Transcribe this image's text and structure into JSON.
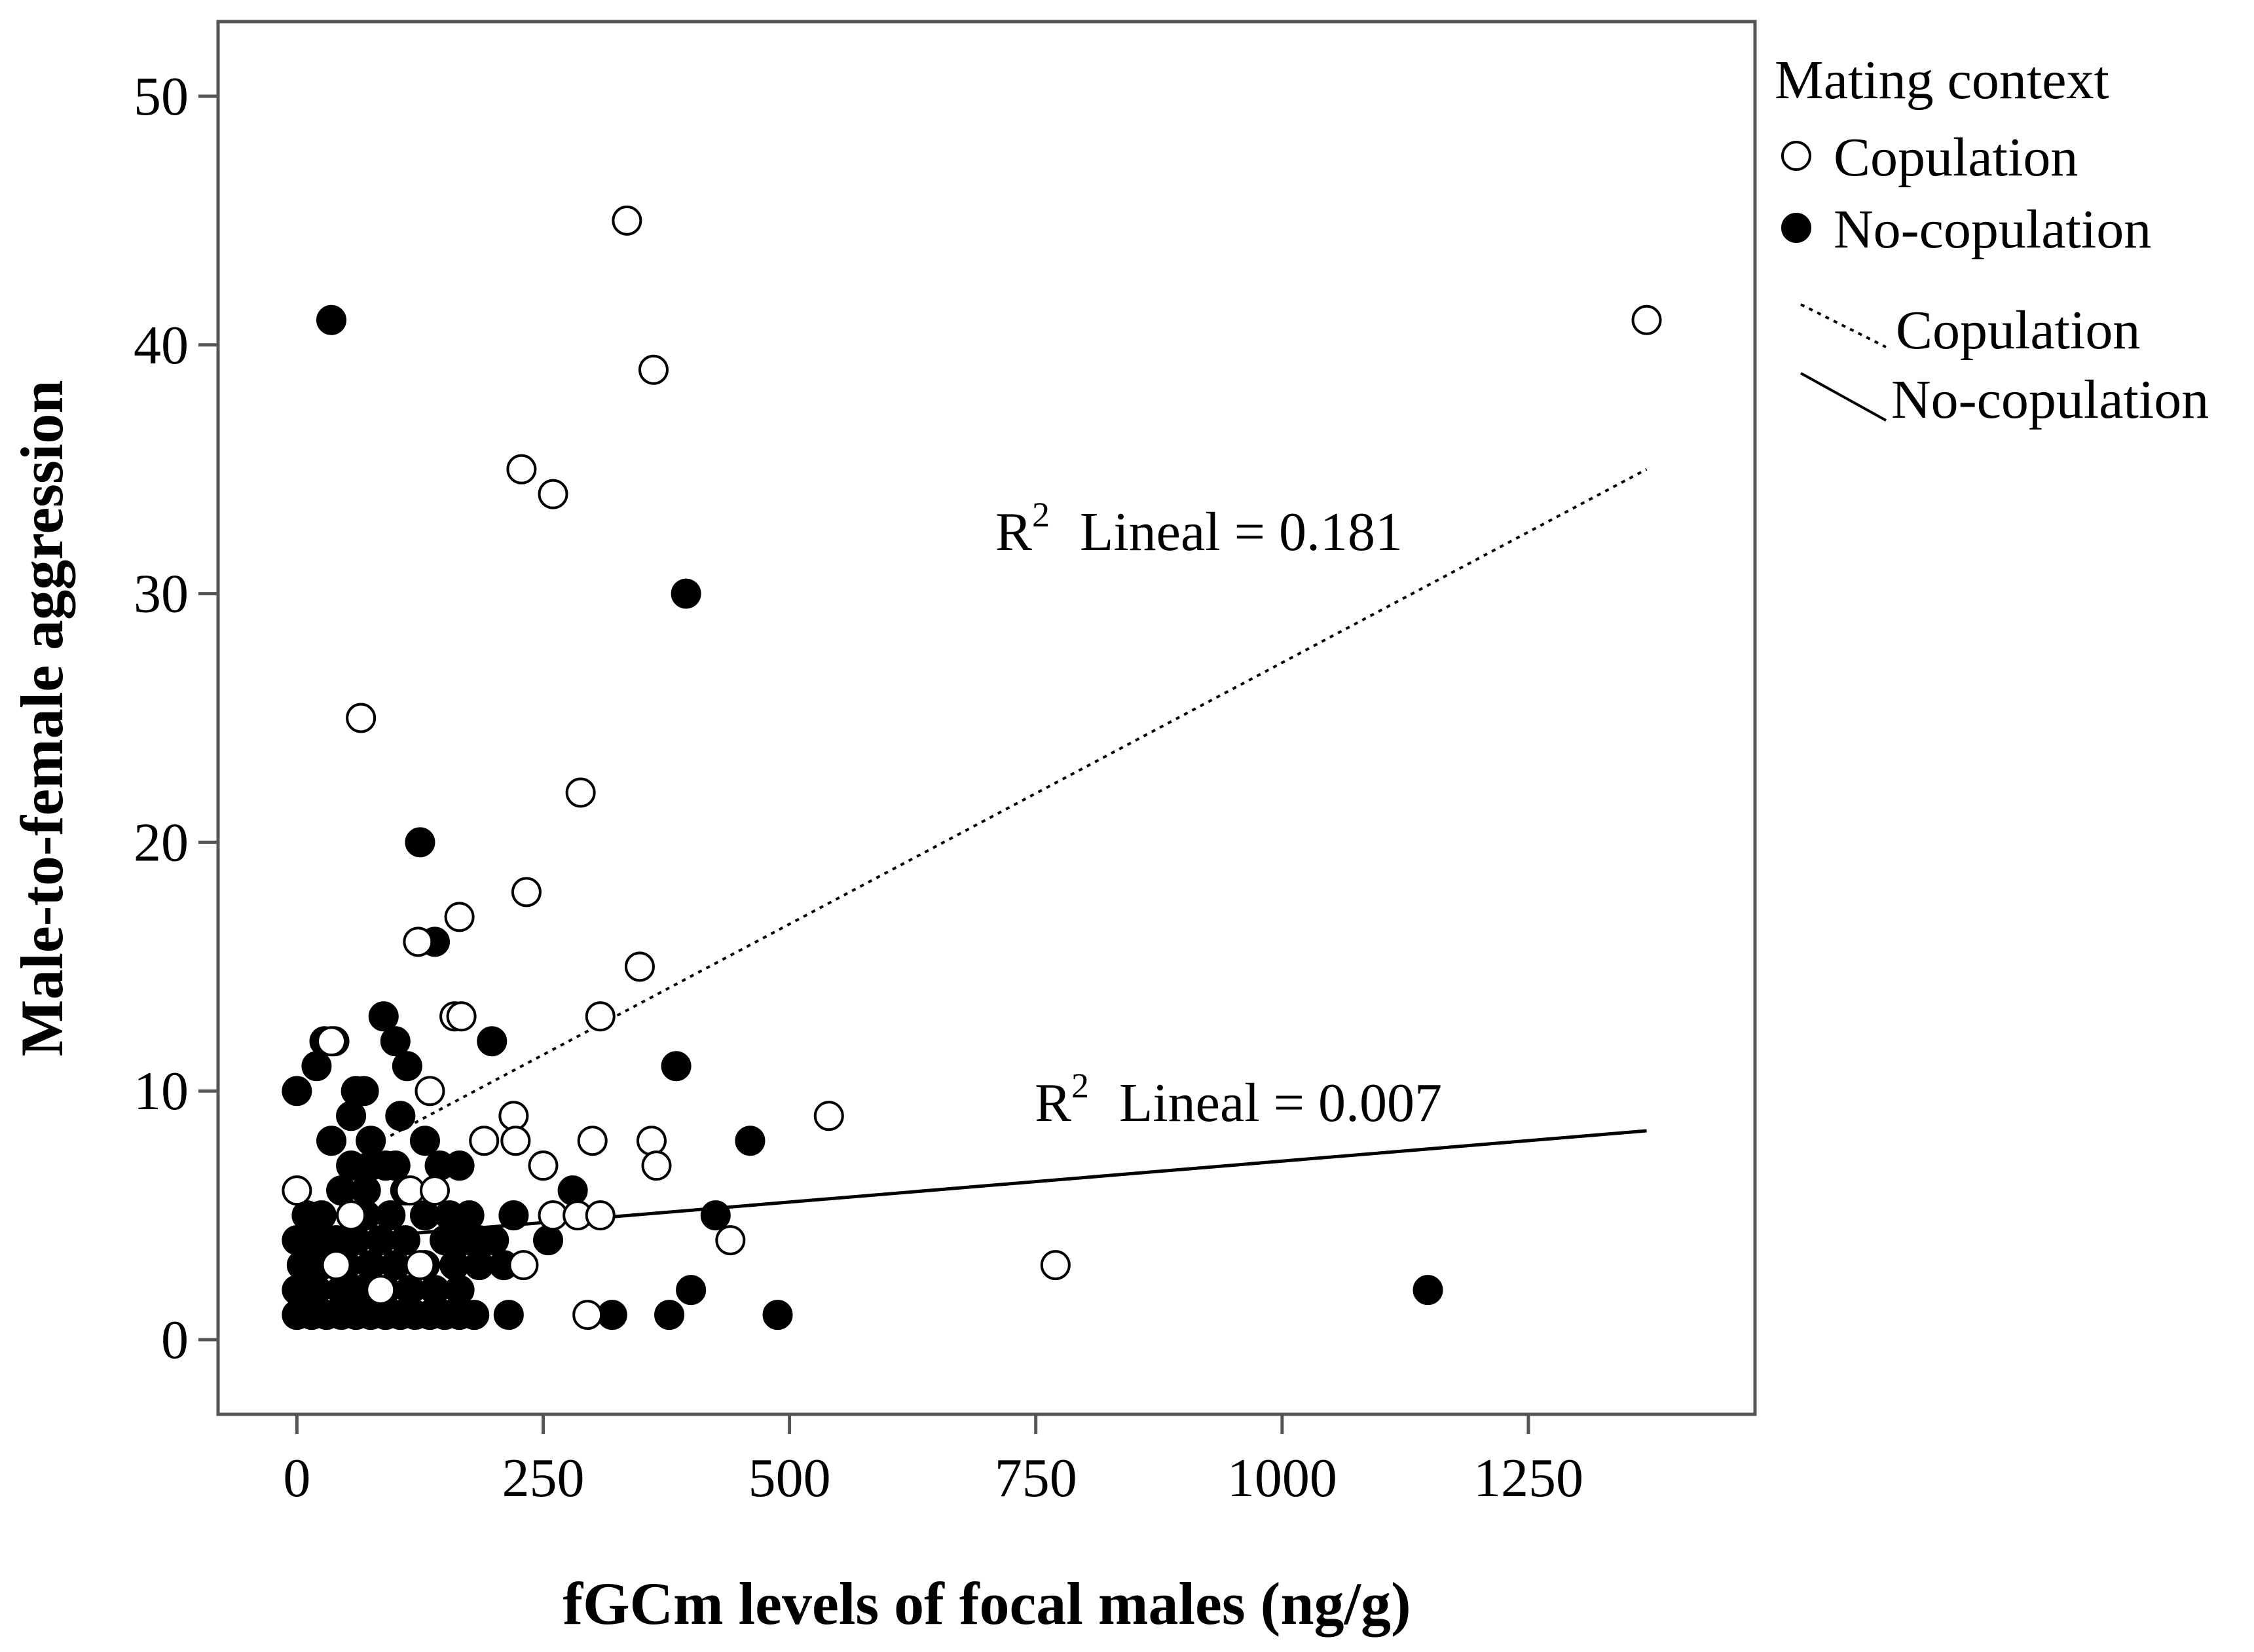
{
  "chart_data": {
    "type": "scatter",
    "title": "",
    "xlabel": "fGCm levels of focal males (ng/g)",
    "ylabel": "Male-to-female aggression",
    "xlim": [
      -80,
      1480
    ],
    "ylim": [
      -3,
      53
    ],
    "xticks": [
      0,
      250,
      500,
      750,
      1000,
      1250
    ],
    "yticks": [
      0,
      10,
      20,
      30,
      40,
      50
    ],
    "xtick_labels": [
      "0",
      "250",
      "500",
      "750",
      "1000",
      "1250"
    ],
    "ytick_labels": [
      "0",
      "10",
      "20",
      "30",
      "40",
      "50"
    ],
    "grid": false,
    "legend": {
      "title": "Mating context",
      "position": "top-right outside",
      "marker_entries": [
        {
          "label": "Copulation",
          "marker": "open-circle"
        },
        {
          "label": "No-copulation",
          "marker": "filled-circle"
        }
      ],
      "line_entries": [
        {
          "label": "Copulation",
          "style": "dotted"
        },
        {
          "label": "No-copulation",
          "style": "solid"
        }
      ]
    },
    "annotations": [
      {
        "r2": "R",
        "sup": "2",
        "text": "Lineal = 0.181",
        "series": "Copulation",
        "x": 710,
        "y": 31.2
      },
      {
        "r2": "R",
        "sup": "2",
        "text": "Lineal = 0.007",
        "series": "No-copulation",
        "x": 750,
        "y": 9.3
      }
    ],
    "fit_lines": [
      {
        "name": "Copulation",
        "style": "dotted",
        "x": [
          95,
          1370
        ],
        "y": [
          8.2,
          35
        ]
      },
      {
        "name": "No-copulation",
        "style": "solid",
        "x": [
          95,
          1370
        ],
        "y": [
          4.2,
          8.4
        ]
      }
    ],
    "series": [
      {
        "name": "Copulation",
        "marker": "open-circle",
        "points": [
          [
            335,
            45
          ],
          [
            362,
            39
          ],
          [
            1370,
            41
          ],
          [
            228,
            35
          ],
          [
            260,
            34
          ],
          [
            65,
            25
          ],
          [
            288,
            22
          ],
          [
            233,
            18
          ],
          [
            165,
            17
          ],
          [
            123,
            16
          ],
          [
            348,
            15
          ],
          [
            160,
            13
          ],
          [
            167,
            13
          ],
          [
            308,
            13
          ],
          [
            35,
            12
          ],
          [
            135,
            10
          ],
          [
            220,
            9
          ],
          [
            540,
            9
          ],
          [
            190,
            8
          ],
          [
            222,
            8
          ],
          [
            300,
            8
          ],
          [
            360,
            8
          ],
          [
            250,
            7
          ],
          [
            365,
            7
          ],
          [
            0,
            6
          ],
          [
            115,
            6
          ],
          [
            140,
            6
          ],
          [
            55,
            5
          ],
          [
            260,
            5
          ],
          [
            285,
            5
          ],
          [
            308,
            5
          ],
          [
            440,
            4
          ],
          [
            40,
            3
          ],
          [
            230,
            3
          ],
          [
            770,
            3
          ],
          [
            295,
            1
          ],
          [
            125,
            3
          ],
          [
            85,
            2
          ]
        ]
      },
      {
        "name": "No-copulation",
        "marker": "filled-circle",
        "points": [
          [
            35,
            41
          ],
          [
            395,
            30
          ],
          [
            125,
            20
          ],
          [
            140,
            16
          ],
          [
            88,
            13
          ],
          [
            28,
            12
          ],
          [
            38,
            12
          ],
          [
            198,
            12
          ],
          [
            20,
            11
          ],
          [
            112,
            11
          ],
          [
            385,
            11
          ],
          [
            0,
            10
          ],
          [
            60,
            10
          ],
          [
            68,
            10
          ],
          [
            100,
            12
          ],
          [
            55,
            9
          ],
          [
            105,
            9
          ],
          [
            35,
            8
          ],
          [
            75,
            8
          ],
          [
            130,
            8
          ],
          [
            460,
            8
          ],
          [
            55,
            7
          ],
          [
            75,
            7
          ],
          [
            90,
            7
          ],
          [
            100,
            7
          ],
          [
            145,
            7
          ],
          [
            165,
            7
          ],
          [
            45,
            6
          ],
          [
            70,
            6
          ],
          [
            110,
            6
          ],
          [
            280,
            6
          ],
          [
            10,
            5
          ],
          [
            25,
            5
          ],
          [
            70,
            5
          ],
          [
            95,
            5
          ],
          [
            130,
            5
          ],
          [
            155,
            5
          ],
          [
            175,
            5
          ],
          [
            220,
            5
          ],
          [
            425,
            5
          ],
          [
            0,
            4
          ],
          [
            20,
            4
          ],
          [
            40,
            4
          ],
          [
            60,
            4
          ],
          [
            85,
            4
          ],
          [
            110,
            4
          ],
          [
            150,
            4
          ],
          [
            170,
            4
          ],
          [
            185,
            4
          ],
          [
            200,
            4
          ],
          [
            255,
            4
          ],
          [
            5,
            3
          ],
          [
            25,
            3
          ],
          [
            50,
            3
          ],
          [
            75,
            3
          ],
          [
            100,
            3
          ],
          [
            130,
            3
          ],
          [
            160,
            3
          ],
          [
            185,
            3
          ],
          [
            210,
            3
          ],
          [
            0,
            2
          ],
          [
            20,
            2
          ],
          [
            45,
            2
          ],
          [
            65,
            2
          ],
          [
            90,
            2
          ],
          [
            115,
            2
          ],
          [
            140,
            2
          ],
          [
            165,
            2
          ],
          [
            400,
            2
          ],
          [
            1148,
            2
          ],
          [
            0,
            1
          ],
          [
            15,
            1
          ],
          [
            30,
            1
          ],
          [
            45,
            1
          ],
          [
            60,
            1
          ],
          [
            75,
            1
          ],
          [
            90,
            1
          ],
          [
            105,
            1
          ],
          [
            120,
            1
          ],
          [
            135,
            1
          ],
          [
            150,
            1
          ],
          [
            165,
            1
          ],
          [
            180,
            1
          ],
          [
            215,
            1
          ],
          [
            320,
            1
          ],
          [
            378,
            1
          ],
          [
            488,
            1
          ]
        ]
      }
    ]
  }
}
